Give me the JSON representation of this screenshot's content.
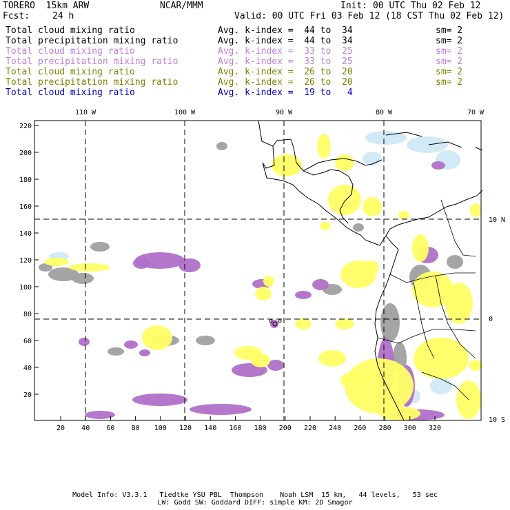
{
  "header": {
    "model": "TORERO  15km ARW",
    "org": "NCAR/MMM",
    "init": "Init: 00 UTC Thu 02 Feb 12",
    "fcst_label": "Fcst:",
    "fcst_value": "24 h",
    "valid": "Valid: 00 UTC Fri 03 Feb 12 (18 CST Thu 02 Feb 12)"
  },
  "legend": [
    {
      "field": "Total cloud mixing ratio",
      "index": "Avg. k-index =  44 to  34",
      "sm": "sm= 2",
      "color": "#000000"
    },
    {
      "field": "Total precipitation mixing ratio",
      "index": "Avg. k-index =  44 to  34",
      "sm": "sm= 2",
      "color": "#000000"
    },
    {
      "field": "Total cloud mixing ratio",
      "index": "Avg. k-index =  33 to  25",
      "sm": "sm= 2",
      "color": "#c080d8"
    },
    {
      "field": "Total precipitation mixing ratio",
      "index": "Avg. k-index =  33 to  25",
      "sm": "sm= 2",
      "color": "#c080d8"
    },
    {
      "field": "Total cloud mixing ratio",
      "index": "Avg. k-index =  26 to  20",
      "sm": "sm= 2",
      "color": "#808000"
    },
    {
      "field": "Total precipitation mixing ratio",
      "index": "Avg. k-index =  26 to  20",
      "sm": "sm= 2",
      "color": "#808000"
    },
    {
      "field": "Total cloud mixing ratio",
      "index": "Avg. k-index =  19 to   4",
      "sm": "",
      "color": "#0000c0"
    }
  ],
  "map": {
    "lon_labels": [
      "110 W",
      "100 W",
      "90 W",
      "80 W",
      "70 W"
    ],
    "lat_labels": [
      "10 N",
      "0",
      "10 S"
    ],
    "y_ticks": [
      "20",
      "40",
      "60",
      "80",
      "100",
      "120",
      "140",
      "160",
      "180",
      "200",
      "220"
    ],
    "x_ticks": [
      "20",
      "40",
      "60",
      "80",
      "100",
      "120",
      "140",
      "160",
      "180",
      "200",
      "220",
      "240",
      "260",
      "280",
      "300",
      "320"
    ],
    "colors": {
      "gray": "#a0a0a0",
      "purple": "#b070c8",
      "yellow": "#ffff66",
      "lightblue": "#cce8f4",
      "coast": "#000000"
    }
  },
  "footer": {
    "line1": "Model Info: V3.3.1   Tiedtke YSU PBL  Thompson    Noah LSM  15 km,   44 levels,   53 sec",
    "line2": "LW: Godd SW: Goddard DIFF: simple KM: 2D Smagor"
  }
}
